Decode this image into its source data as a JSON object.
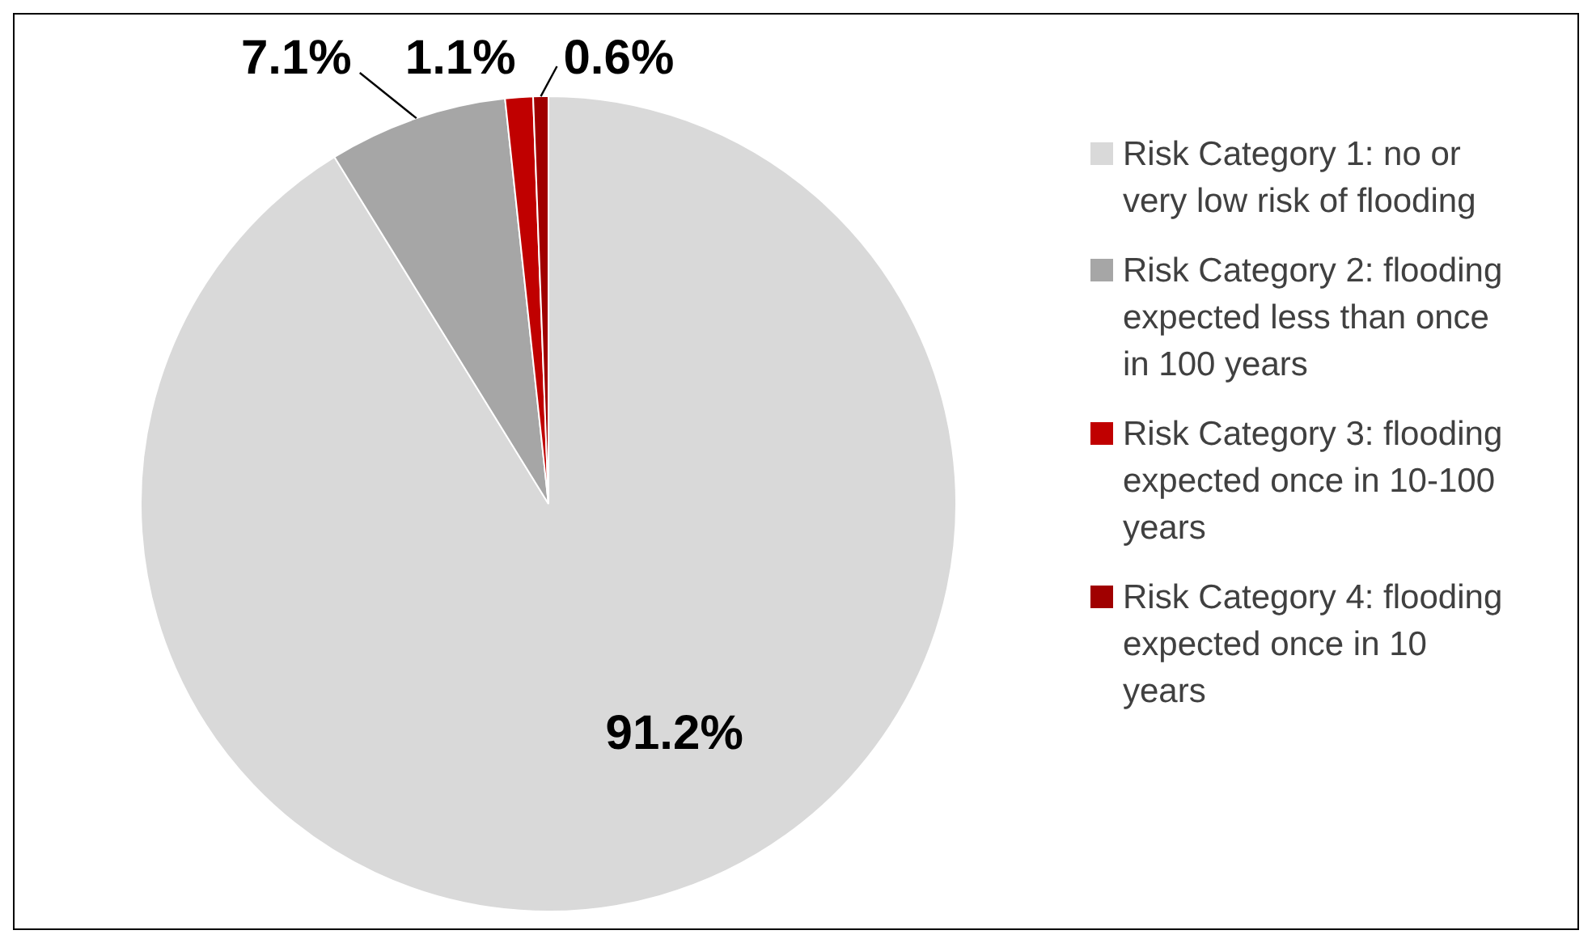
{
  "chart_data": {
    "type": "pie",
    "categories": [
      "Risk Category 1: no or very low risk of flooding",
      "Risk Category 2: flooding expected less than once in 100 years",
      "Risk Category 3: flooding expected once in 10-100 years",
      "Risk Category 4: flooding expected once in 10 years"
    ],
    "values": [
      91.2,
      7.1,
      1.1,
      0.6
    ],
    "colors": [
      "#d9d9d9",
      "#a6a6a6",
      "#c00000",
      "#a00000"
    ],
    "value_labels": [
      "91.2%",
      "7.1%",
      "1.1%",
      "0.6%"
    ],
    "legend": "right"
  }
}
